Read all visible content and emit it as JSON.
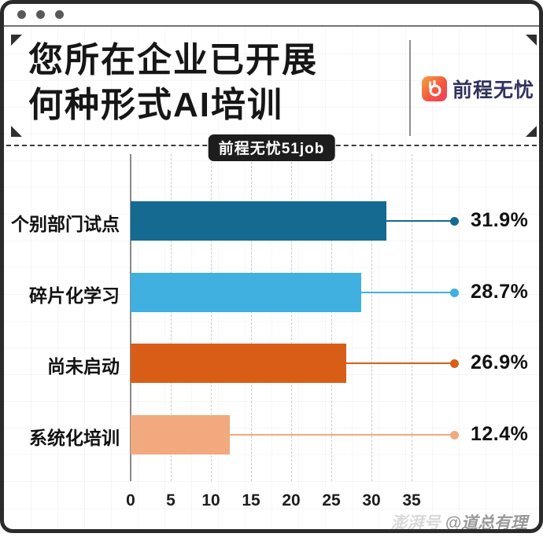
{
  "window": {
    "controls_icon": "three-window-dots"
  },
  "header": {
    "title_line1": "您所在企业已开展",
    "title_line2": "何种形式AI培训",
    "brand": {
      "icon": "51job-hand-logo-icon",
      "name": "前程无忧"
    },
    "source_badge": "前程无忧51job"
  },
  "chart_data": {
    "type": "bar",
    "orientation": "horizontal",
    "title": "您所在企业已开展何种形式AI培训",
    "source": "前程无忧51job",
    "categories": [
      "个别部门试点",
      "碎片化学习",
      "尚未启动",
      "系统化培训"
    ],
    "values": [
      31.9,
      28.7,
      26.9,
      12.4
    ],
    "value_labels": [
      "31.9%",
      "28.7%",
      "26.9%",
      "12.4%"
    ],
    "bar_colors": [
      "#156a91",
      "#3fb0df",
      "#d85e17",
      "#f1a97d"
    ],
    "x_ticks": [
      0,
      5,
      10,
      15,
      20,
      25,
      30,
      35
    ],
    "xlim": [
      0,
      40
    ],
    "xlabel": "",
    "ylabel": "",
    "grid": "vertical-dashed",
    "legend": "none"
  },
  "watermark": {
    "prefix": "澎湃号",
    "handle": "@道总有理"
  },
  "colors": {
    "frame_border": "#2b2b2b",
    "titlebar_dot": "#58595b",
    "title_text": "#161616",
    "badge_bg": "#1d1d1d",
    "badge_text": "#ffffff",
    "brand_navy": "#32325e",
    "brand_gradient_start": "#f8a13e",
    "brand_gradient_end": "#ee3d5c",
    "axis_line": "#8a8a8a",
    "gridline": "#c9c9c9",
    "watermark_light": "#d9d9d9",
    "watermark_dark": "#9a9a9a"
  }
}
